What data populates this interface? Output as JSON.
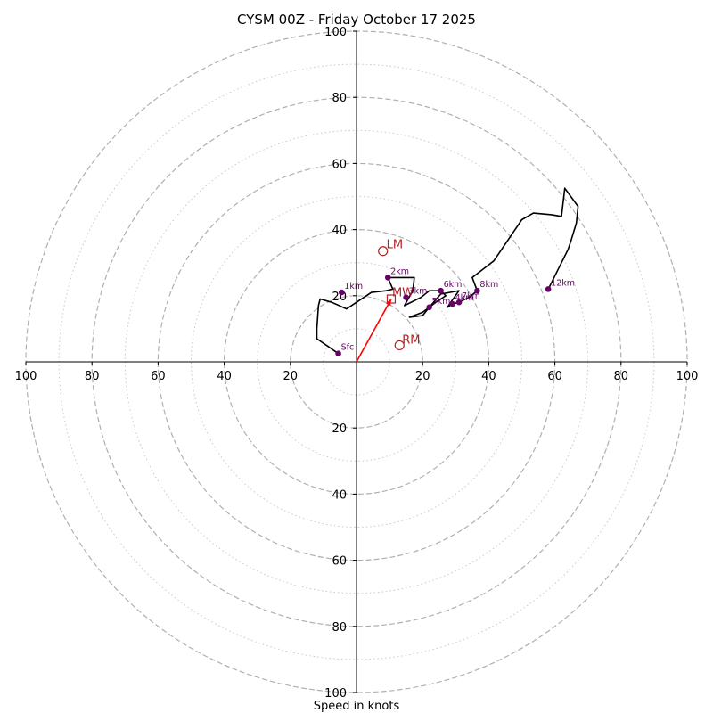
{
  "chart_data": {
    "type": "scatter",
    "title": "CYSM 00Z - Friday October 17 2025",
    "xlabel": "Speed in knots",
    "ylabel": "",
    "xlim": [
      -100,
      100
    ],
    "ylim": [
      -100,
      100
    ],
    "tick_labels": {
      "x_left": [
        "100",
        "80",
        "60",
        "40",
        "20"
      ],
      "x_right": [
        "20",
        "40",
        "60",
        "80",
        "100"
      ],
      "y_up": [
        "100",
        "80",
        "60",
        "40",
        "20"
      ],
      "y_down": [
        "20",
        "40",
        "60",
        "80",
        "100"
      ]
    },
    "major_rings": [
      20,
      40,
      60,
      80,
      100
    ],
    "minor_rings": [
      10,
      30,
      50,
      70,
      90
    ],
    "hodograph_trace": [
      [
        -5.5,
        2.5
      ],
      [
        -12,
        7
      ],
      [
        -12,
        10
      ],
      [
        -11.5,
        17
      ],
      [
        -11,
        19
      ],
      [
        -7.5,
        18
      ],
      [
        -3,
        16
      ],
      [
        4.5,
        21
      ],
      [
        9,
        21.5
      ],
      [
        11,
        22
      ],
      [
        9.5,
        25.5
      ],
      [
        17.5,
        25.5
      ],
      [
        17,
        21.5
      ],
      [
        14.5,
        17
      ],
      [
        19.5,
        19.5
      ],
      [
        22,
        21.5
      ],
      [
        25.5,
        21.5
      ],
      [
        27,
        20
      ],
      [
        24,
        18
      ],
      [
        20,
        15
      ],
      [
        16,
        13.5
      ],
      [
        20,
        14
      ],
      [
        22,
        16.5
      ],
      [
        25.5,
        20.5
      ],
      [
        31,
        21.5
      ],
      [
        28.5,
        18
      ],
      [
        27.5,
        16.5
      ],
      [
        29,
        17.5
      ],
      [
        31,
        18
      ],
      [
        34,
        19.5
      ],
      [
        36.5,
        21.5
      ],
      [
        35,
        25.5
      ],
      [
        41.5,
        30.5
      ],
      [
        50,
        43
      ],
      [
        53.5,
        45
      ],
      [
        59,
        44.5
      ],
      [
        62,
        44
      ],
      [
        63,
        52.5
      ],
      [
        67,
        47
      ],
      [
        66.5,
        42
      ],
      [
        65,
        37
      ],
      [
        64,
        34
      ],
      [
        62,
        30
      ],
      [
        58,
        22
      ]
    ],
    "height_points": [
      {
        "label": "Sfc",
        "u": -5.5,
        "v": 2.5
      },
      {
        "label": "1km",
        "u": -4.5,
        "v": 21
      },
      {
        "label": "2km",
        "u": 9.5,
        "v": 25.5
      },
      {
        "label": "3km",
        "u": 15,
        "v": 19.5
      },
      {
        "label": "5km",
        "u": 22,
        "v": 16.5
      },
      {
        "label": "6km",
        "u": 25.5,
        "v": 21.5
      },
      {
        "label": "4km",
        "u": 29,
        "v": 17.5
      },
      {
        "label": "7km",
        "u": 31,
        "v": 18
      },
      {
        "label": "8km",
        "u": 36.5,
        "v": 21.5
      },
      {
        "label": "12km",
        "u": 58,
        "v": 22
      }
    ],
    "storm_motion": {
      "LM": {
        "label": "LM",
        "u": 8,
        "v": 33.5
      },
      "RM": {
        "label": "RM",
        "u": 13,
        "v": 5
      },
      "MW": {
        "label": "MW",
        "u": 10.5,
        "v": 19
      }
    },
    "colors": {
      "trace": "#000000",
      "height_points": "#6a006a",
      "storm_motion": "#b22222",
      "arrow": "#ff0000",
      "major_ring": "#b0b0b0",
      "minor_ring": "#c8c8c8"
    }
  }
}
